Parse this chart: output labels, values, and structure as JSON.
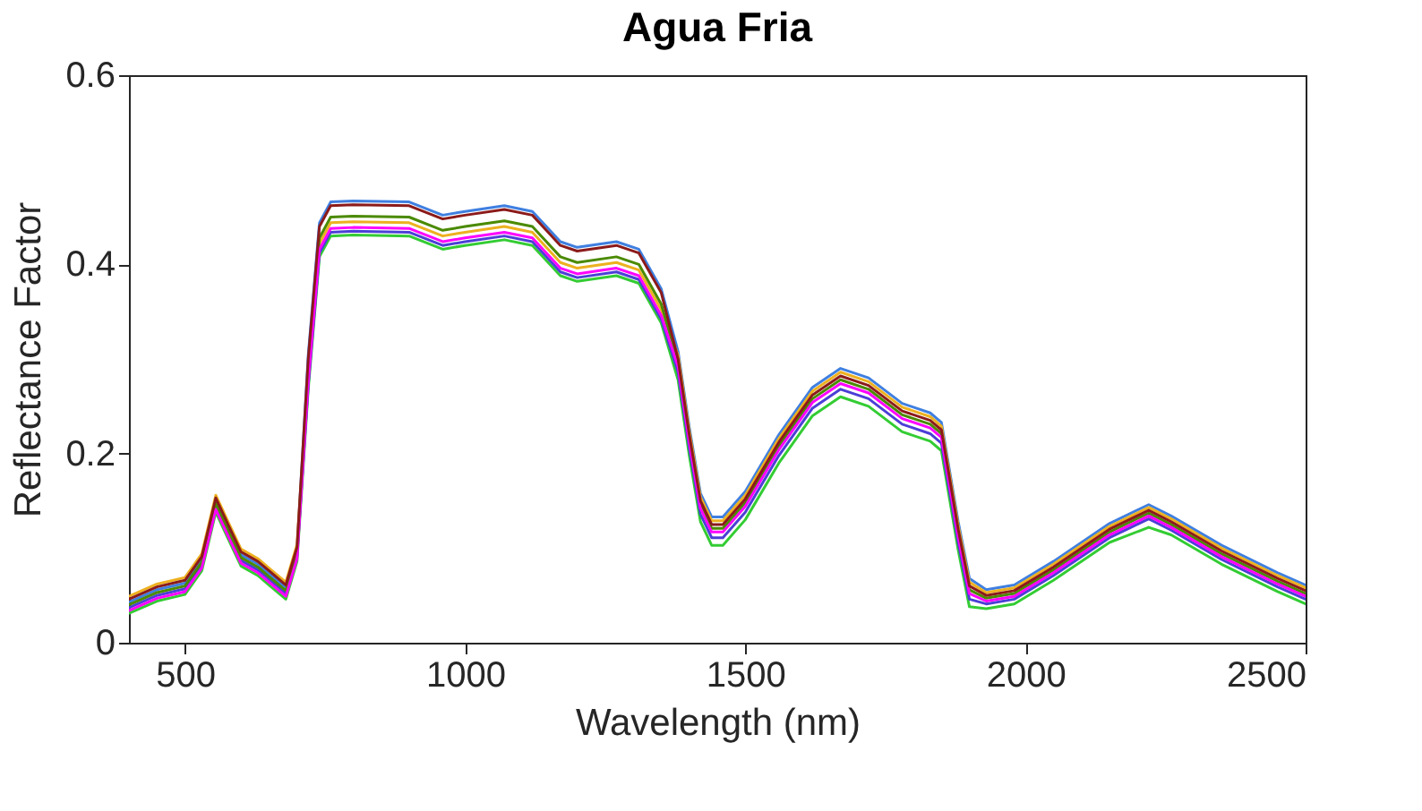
{
  "chart_data": {
    "type": "line",
    "title": "Agua Fria",
    "xlabel": "Wavelength (nm)",
    "ylabel": "Reflectance Factor",
    "x": [
      400,
      450,
      500,
      530,
      555,
      580,
      600,
      630,
      650,
      680,
      700,
      720,
      740,
      760,
      800,
      900,
      960,
      1000,
      1070,
      1120,
      1170,
      1200,
      1270,
      1310,
      1350,
      1380,
      1400,
      1420,
      1440,
      1460,
      1500,
      1560,
      1620,
      1670,
      1720,
      1780,
      1830,
      1850,
      1880,
      1900,
      1930,
      1980,
      2050,
      2150,
      2220,
      2260,
      2350,
      2450,
      2500
    ],
    "xlim": [
      400,
      2500
    ],
    "xticks": [
      500,
      1000,
      1500,
      2000,
      2500
    ],
    "ylim": [
      0,
      0.6
    ],
    "yticks": [
      0,
      0.2,
      0.4,
      0.6
    ],
    "grid": false,
    "legend": false,
    "marker": "none",
    "line_style": "solid",
    "series": [
      {
        "color": "#3f7fe0",
        "values": [
          0.043,
          0.056,
          0.063,
          0.088,
          0.15,
          0.118,
          0.093,
          0.083,
          0.073,
          0.058,
          0.098,
          0.304,
          0.444,
          0.466,
          0.467,
          0.466,
          0.452,
          0.456,
          0.462,
          0.456,
          0.424,
          0.418,
          0.424,
          0.416,
          0.374,
          0.308,
          0.228,
          0.158,
          0.133,
          0.133,
          0.16,
          0.22,
          0.27,
          0.29,
          0.28,
          0.253,
          0.243,
          0.233,
          0.128,
          0.068,
          0.056,
          0.061,
          0.086,
          0.126,
          0.146,
          0.134,
          0.103,
          0.074,
          0.061
        ]
      },
      {
        "color": "#33cc33",
        "values": [
          0.031,
          0.044,
          0.051,
          0.076,
          0.138,
          0.106,
          0.081,
          0.071,
          0.061,
          0.046,
          0.086,
          0.268,
          0.408,
          0.43,
          0.431,
          0.43,
          0.416,
          0.42,
          0.426,
          0.42,
          0.388,
          0.382,
          0.388,
          0.38,
          0.338,
          0.278,
          0.198,
          0.128,
          0.103,
          0.103,
          0.13,
          0.19,
          0.24,
          0.26,
          0.25,
          0.223,
          0.213,
          0.203,
          0.098,
          0.038,
          0.036,
          0.041,
          0.066,
          0.106,
          0.122,
          0.114,
          0.083,
          0.054,
          0.041
        ]
      },
      {
        "color": "#4b3fd6",
        "values": [
          0.037,
          0.05,
          0.057,
          0.082,
          0.144,
          0.112,
          0.087,
          0.077,
          0.067,
          0.052,
          0.092,
          0.272,
          0.412,
          0.434,
          0.435,
          0.434,
          0.42,
          0.424,
          0.43,
          0.424,
          0.392,
          0.386,
          0.392,
          0.384,
          0.342,
          0.286,
          0.206,
          0.136,
          0.111,
          0.111,
          0.138,
          0.198,
          0.248,
          0.268,
          0.258,
          0.231,
          0.221,
          0.211,
          0.106,
          0.046,
          0.041,
          0.046,
          0.071,
          0.111,
          0.131,
          0.119,
          0.088,
          0.059,
          0.046
        ]
      },
      {
        "color": "#edb120",
        "values": [
          0.049,
          0.062,
          0.069,
          0.094,
          0.156,
          0.124,
          0.099,
          0.089,
          0.079,
          0.064,
          0.104,
          0.282,
          0.422,
          0.444,
          0.445,
          0.444,
          0.43,
          0.434,
          0.44,
          0.434,
          0.402,
          0.396,
          0.402,
          0.394,
          0.352,
          0.304,
          0.224,
          0.154,
          0.129,
          0.129,
          0.156,
          0.216,
          0.266,
          0.286,
          0.276,
          0.249,
          0.239,
          0.229,
          0.124,
          0.064,
          0.053,
          0.058,
          0.083,
          0.123,
          0.143,
          0.131,
          0.1,
          0.071,
          0.058
        ]
      },
      {
        "color": "#4a8a00",
        "values": [
          0.04,
          0.053,
          0.06,
          0.085,
          0.147,
          0.115,
          0.09,
          0.08,
          0.07,
          0.055,
          0.095,
          0.288,
          0.428,
          0.45,
          0.451,
          0.45,
          0.436,
          0.44,
          0.446,
          0.44,
          0.408,
          0.402,
          0.408,
          0.4,
          0.358,
          0.296,
          0.216,
          0.146,
          0.121,
          0.121,
          0.148,
          0.208,
          0.258,
          0.278,
          0.268,
          0.241,
          0.231,
          0.221,
          0.116,
          0.056,
          0.047,
          0.052,
          0.077,
          0.117,
          0.137,
          0.125,
          0.094,
          0.065,
          0.052
        ]
      },
      {
        "color": "#ff00ff",
        "values": [
          0.034,
          0.047,
          0.054,
          0.079,
          0.141,
          0.109,
          0.084,
          0.074,
          0.064,
          0.049,
          0.089,
          0.276,
          0.416,
          0.438,
          0.439,
          0.438,
          0.424,
          0.428,
          0.434,
          0.428,
          0.396,
          0.39,
          0.396,
          0.388,
          0.346,
          0.292,
          0.212,
          0.142,
          0.117,
          0.117,
          0.144,
          0.204,
          0.254,
          0.274,
          0.264,
          0.237,
          0.227,
          0.217,
          0.112,
          0.052,
          0.044,
          0.049,
          0.074,
          0.114,
          0.134,
          0.122,
          0.091,
          0.062,
          0.049
        ]
      },
      {
        "color": "#8b1a1a",
        "values": [
          0.046,
          0.059,
          0.066,
          0.091,
          0.153,
          0.121,
          0.096,
          0.086,
          0.076,
          0.061,
          0.101,
          0.3,
          0.44,
          0.462,
          0.463,
          0.462,
          0.448,
          0.452,
          0.458,
          0.452,
          0.42,
          0.414,
          0.42,
          0.412,
          0.37,
          0.3,
          0.22,
          0.15,
          0.125,
          0.125,
          0.152,
          0.212,
          0.262,
          0.282,
          0.272,
          0.245,
          0.235,
          0.225,
          0.12,
          0.06,
          0.05,
          0.055,
          0.08,
          0.12,
          0.14,
          0.128,
          0.097,
          0.068,
          0.055
        ]
      }
    ]
  }
}
